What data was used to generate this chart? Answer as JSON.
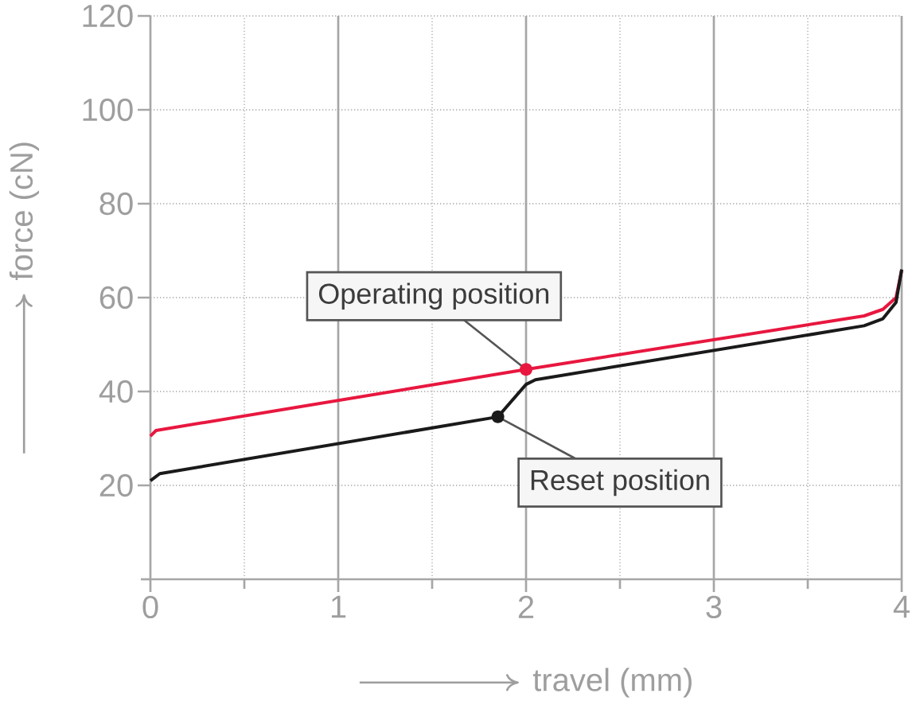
{
  "chart_data": {
    "type": "line",
    "xlabel": "travel (mm)",
    "ylabel": "force (cN)",
    "xlim": [
      0,
      4
    ],
    "ylim": [
      0,
      120
    ],
    "xticks": [
      0,
      {
        "value": 0.5,
        "label": null
      },
      1,
      {
        "value": 1.5,
        "label": null
      },
      2,
      {
        "value": 2.5,
        "label": null
      },
      3,
      {
        "value": 3.5,
        "label": null
      },
      4
    ],
    "yticks": [
      {
        "value": 0,
        "label": null
      },
      20,
      40,
      60,
      80,
      100,
      120
    ],
    "grid": true,
    "series": [
      {
        "color": "#e8173f",
        "x": [
          0,
          0.03,
          2,
          3.8,
          3.9,
          3.97,
          4
        ],
        "values": [
          30.5,
          31.7,
          44.7,
          56.1,
          57.5,
          60,
          65.8
        ]
      },
      {
        "color": "#1a1a1a",
        "x": [
          0,
          0.05,
          1.85,
          2,
          2.05,
          3.8,
          3.9,
          3.97,
          4
        ],
        "values": [
          21,
          22.5,
          34.6,
          41.5,
          42.5,
          54,
          55.5,
          59,
          66
        ]
      }
    ],
    "annotations": [
      {
        "text": "Operating position",
        "x": 2,
        "y": 44.7
      },
      {
        "text": "Reset position",
        "x": 1.85,
        "y": 34.6
      }
    ]
  }
}
